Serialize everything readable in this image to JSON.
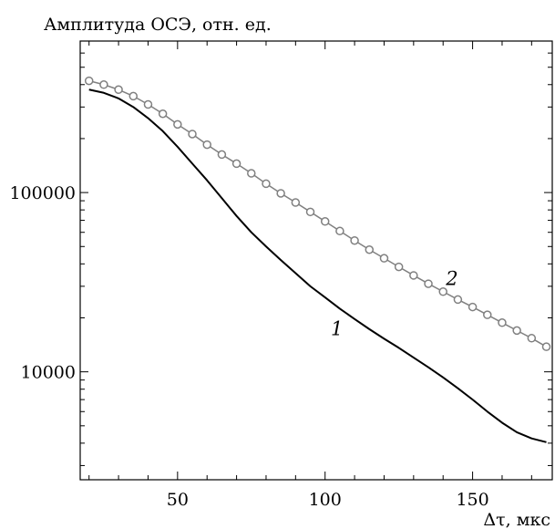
{
  "chart_data": {
    "type": "line",
    "ylabel": "Амплитуда ОСЭ, отн. ед.",
    "xlabel": "Δτ, мкс",
    "xlim": [
      17,
      177
    ],
    "ylim": [
      2500,
      700000
    ],
    "yscale": "log",
    "xticks": [
      50,
      100,
      150
    ],
    "xtick_labels": [
      "50",
      "100",
      "150"
    ],
    "yticks": [
      10000,
      100000
    ],
    "ytick_labels": [
      "10000",
      "100000"
    ],
    "grid": false,
    "series": [
      {
        "name": "1",
        "color": "#000000",
        "markers": false,
        "x": [
          20,
          25,
          30,
          35,
          40,
          45,
          50,
          55,
          60,
          65,
          70,
          75,
          80,
          85,
          90,
          95,
          100,
          105,
          110,
          115,
          120,
          125,
          130,
          135,
          140,
          145,
          150,
          155,
          160,
          165,
          170,
          175
        ],
        "y": [
          375000,
          360000,
          335000,
          300000,
          260000,
          220000,
          180000,
          145000,
          117000,
          93000,
          74000,
          60000,
          50000,
          42000,
          35500,
          30000,
          26000,
          22500,
          19700,
          17300,
          15300,
          13600,
          12000,
          10600,
          9300,
          8100,
          7000,
          6000,
          5200,
          4600,
          4250,
          4050
        ]
      },
      {
        "name": "2",
        "color": "#808080",
        "markers": true,
        "x": [
          20,
          25,
          30,
          35,
          40,
          45,
          50,
          55,
          60,
          65,
          70,
          75,
          80,
          85,
          90,
          95,
          100,
          105,
          110,
          115,
          120,
          125,
          130,
          135,
          140,
          145,
          150,
          155,
          160,
          165,
          170,
          175
        ],
        "y": [
          420000,
          400000,
          375000,
          345000,
          310000,
          275000,
          240000,
          212000,
          185000,
          163000,
          145000,
          128000,
          112000,
          99000,
          88000,
          78000,
          69000,
          61000,
          54000,
          48000,
          43000,
          38500,
          34500,
          31000,
          28000,
          25300,
          23000,
          20800,
          18800,
          17000,
          15400,
          13800
        ]
      }
    ],
    "annotations": [
      {
        "text": "1",
        "x": 104,
        "y": 16000
      },
      {
        "text": "2",
        "x": 143,
        "y": 30500
      }
    ]
  }
}
